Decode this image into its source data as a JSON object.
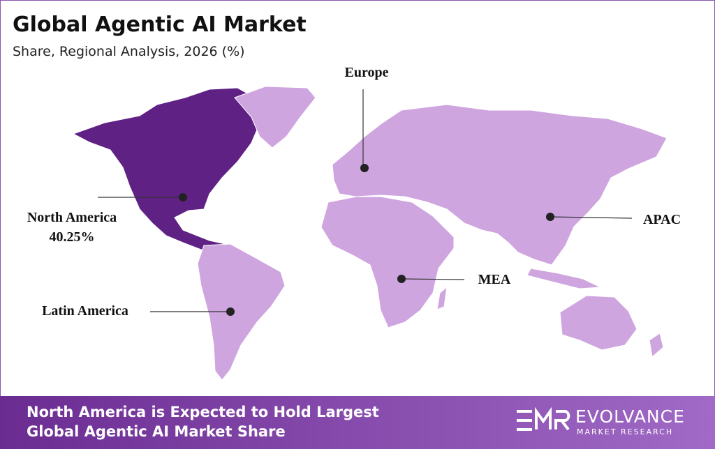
{
  "header": {
    "title": "Global Agentic AI Market",
    "subtitle": "Share, Regional Analysis, 2026 (%)"
  },
  "regions": [
    {
      "name": "Europe"
    },
    {
      "name": "North America",
      "share": "40.25%"
    },
    {
      "name": "APAC"
    },
    {
      "name": "MEA"
    },
    {
      "name": "Latin America"
    }
  ],
  "footer": {
    "headline": [
      "North America is Expected to Hold Largest",
      "Global Agentic AI Market Share"
    ]
  },
  "logo": {
    "name": "EVOLVANCE",
    "tagline": "MARKET RESEARCH"
  }
}
